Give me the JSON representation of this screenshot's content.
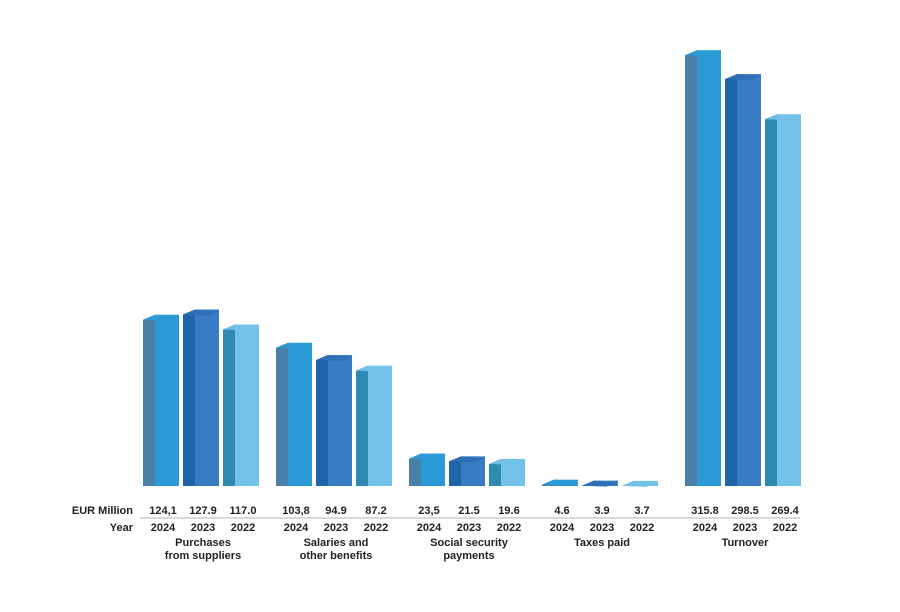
{
  "chart_data": {
    "type": "bar",
    "row_labels": {
      "values": "EUR Million",
      "years": "Year"
    },
    "groups": [
      {
        "category": "Purchases from suppliers",
        "category_lines": [
          "Purchases",
          "from suppliers"
        ],
        "bars": [
          {
            "year": "2024",
            "value": 124.1,
            "label": "124,1"
          },
          {
            "year": "2023",
            "value": 127.9,
            "label": "127.9"
          },
          {
            "year": "2022",
            "value": 117.0,
            "label": "117.0"
          }
        ]
      },
      {
        "category": "Salaries and other benefits",
        "category_lines": [
          "Salaries and",
          "other benefits"
        ],
        "bars": [
          {
            "year": "2024",
            "value": 103.8,
            "label": "103,8"
          },
          {
            "year": "2023",
            "value": 94.9,
            "label": "94.9"
          },
          {
            "year": "2022",
            "value": 87.2,
            "label": "87.2"
          }
        ]
      },
      {
        "category": "Social security payments",
        "category_lines": [
          "Social security",
          "payments"
        ],
        "bars": [
          {
            "year": "2024",
            "value": 23.5,
            "label": "23,5"
          },
          {
            "year": "2023",
            "value": 21.5,
            "label": "21.5"
          },
          {
            "year": "2022",
            "value": 19.6,
            "label": "19.6"
          }
        ]
      },
      {
        "category": "Taxes paid",
        "category_lines": [
          "Taxes paid"
        ],
        "bars": [
          {
            "year": "2024",
            "value": 4.6,
            "label": "4.6"
          },
          {
            "year": "2023",
            "value": 3.9,
            "label": "3.9"
          },
          {
            "year": "2022",
            "value": 3.7,
            "label": "3.7"
          }
        ]
      },
      {
        "category": "Turnover",
        "category_lines": [
          "Turnover"
        ],
        "bars": [
          {
            "year": "2024",
            "value": 315.8,
            "label": "315.8"
          },
          {
            "year": "2023",
            "value": 298.5,
            "label": "298.5"
          },
          {
            "year": "2022",
            "value": 269.4,
            "label": "269.4"
          }
        ]
      }
    ],
    "colors": {
      "2024": {
        "front": "#2b9bd8",
        "side": "#4a7fa8",
        "top": "#2b9bd8"
      },
      "2023": {
        "front": "#3a7cc4",
        "side": "#1f63a8",
        "top": "#2e6fb5"
      },
      "2022": {
        "front": "#72c2ea",
        "side": "#2e8ab0",
        "top": "#72c2ea"
      }
    },
    "grid": false,
    "legend": "none"
  }
}
